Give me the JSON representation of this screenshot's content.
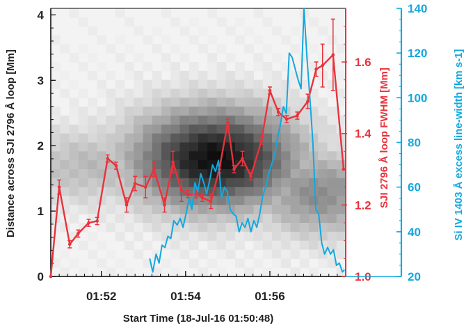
{
  "chart_data": {
    "type": "line",
    "xlabel": "Start Time (18-Jul-16 01:50:48)",
    "x_tick_labels": [
      "01:52",
      "01:54",
      "01:56"
    ],
    "x_ticks_minutes": [
      1.2,
      3.2,
      5.2
    ],
    "xlim_minutes": [
      0,
      7.0
    ],
    "left_axis": {
      "label": "Distance across SJI 2796 Å loop [Mm]",
      "ylim": [
        0,
        4.1
      ],
      "ticks": [
        0,
        1,
        2,
        3,
        4
      ],
      "color": "#000000"
    },
    "right_axis_1": {
      "label": "SJI 2796 Å loop FWHM [Mm]",
      "ylim": [
        1.0,
        1.75
      ],
      "ticks": [
        1.0,
        1.2,
        1.4,
        1.6
      ],
      "tick_labels": [
        "1.0",
        "1.2",
        "1.4",
        "1.6"
      ],
      "color": "#e8323c"
    },
    "right_axis_2": {
      "label": "Si IV 1403 Å excess line-width [km s-1]",
      "ylim": [
        20,
        140
      ],
      "ticks": [
        20,
        40,
        60,
        80,
        100,
        120,
        140
      ],
      "color": "#13a8de"
    },
    "heatmap": {
      "description_of_values": "relative intensity, darker = brighter loop emission",
      "peak_time_minutes": 3.9,
      "peak_distance": 1.8
    },
    "series": [
      {
        "name": "SJI 2796 Å loop FWHM [Mm]",
        "axis": "right_axis_1",
        "color": "#e8323c",
        "x": [
          0.0,
          0.2,
          0.45,
          0.65,
          0.9,
          1.1,
          1.35,
          1.55,
          1.8,
          2.0,
          2.25,
          2.45,
          2.7,
          2.9,
          3.1,
          3.25,
          3.45,
          3.6,
          3.8,
          4.0,
          4.2,
          4.35,
          4.55,
          4.75,
          5.0,
          5.2,
          5.4,
          5.6,
          5.85,
          6.1,
          6.3,
          6.45,
          6.7,
          6.95
        ],
        "y": [
          1.0,
          1.25,
          1.09,
          1.12,
          1.15,
          1.155,
          1.33,
          1.31,
          1.2,
          1.26,
          1.25,
          1.3,
          1.2,
          1.32,
          1.24,
          1.23,
          1.23,
          1.22,
          1.21,
          1.3,
          1.43,
          1.3,
          1.33,
          1.28,
          1.38,
          1.52,
          1.46,
          1.44,
          1.45,
          1.49,
          1.58,
          1.59,
          1.62,
          1.3
        ],
        "error": [
          0,
          0.02,
          0.01,
          0.01,
          0.01,
          0.01,
          0.01,
          0.01,
          0.02,
          0.02,
          0.03,
          0.02,
          0.02,
          0.03,
          0.03,
          0.01,
          0.01,
          0.01,
          0.02,
          0.01,
          0.01,
          0.01,
          0.02,
          0.01,
          0.01,
          0.01,
          0.01,
          0.01,
          0.01,
          0.02,
          0.02,
          0.06,
          0.1,
          0
        ]
      },
      {
        "name": "Si IV 1403 Å excess line-width [km s-1]",
        "axis": "right_axis_2",
        "color": "#13a8de",
        "x": [
          2.35,
          2.42,
          2.5,
          2.57,
          2.64,
          2.71,
          2.78,
          2.85,
          2.92,
          3.0,
          3.07,
          3.14,
          3.21,
          3.28,
          3.35,
          3.42,
          3.49,
          3.56,
          3.63,
          3.7,
          3.77,
          3.84,
          3.91,
          3.98,
          4.05,
          4.12,
          4.19,
          4.26,
          4.33,
          4.4,
          4.47,
          4.54,
          4.61,
          4.68,
          4.75,
          4.82,
          4.89,
          4.96,
          5.03,
          5.1,
          5.17,
          5.24,
          5.31,
          5.38,
          5.45,
          5.52,
          5.59,
          5.66,
          5.73,
          5.8,
          5.87,
          5.94,
          6.01,
          6.08,
          6.15,
          6.22,
          6.29,
          6.36,
          6.43,
          6.5,
          6.57,
          6.64,
          6.71,
          6.78,
          6.85,
          6.92,
          6.97
        ],
        "y": [
          28,
          22,
          30,
          26,
          34,
          33,
          38,
          37,
          45,
          43,
          46,
          42,
          48,
          55,
          50,
          62,
          58,
          66,
          62,
          57,
          63,
          70,
          67,
          72,
          55,
          60,
          58,
          50,
          48,
          47,
          40,
          44,
          42,
          46,
          40,
          45,
          42,
          48,
          56,
          60,
          66,
          70,
          74,
          82,
          88,
          96,
          93,
          120,
          118,
          113,
          108,
          104,
          140,
          118,
          100,
          80,
          50,
          48,
          35,
          30,
          33,
          30,
          32,
          25,
          26,
          22,
          23
        ]
      }
    ]
  }
}
